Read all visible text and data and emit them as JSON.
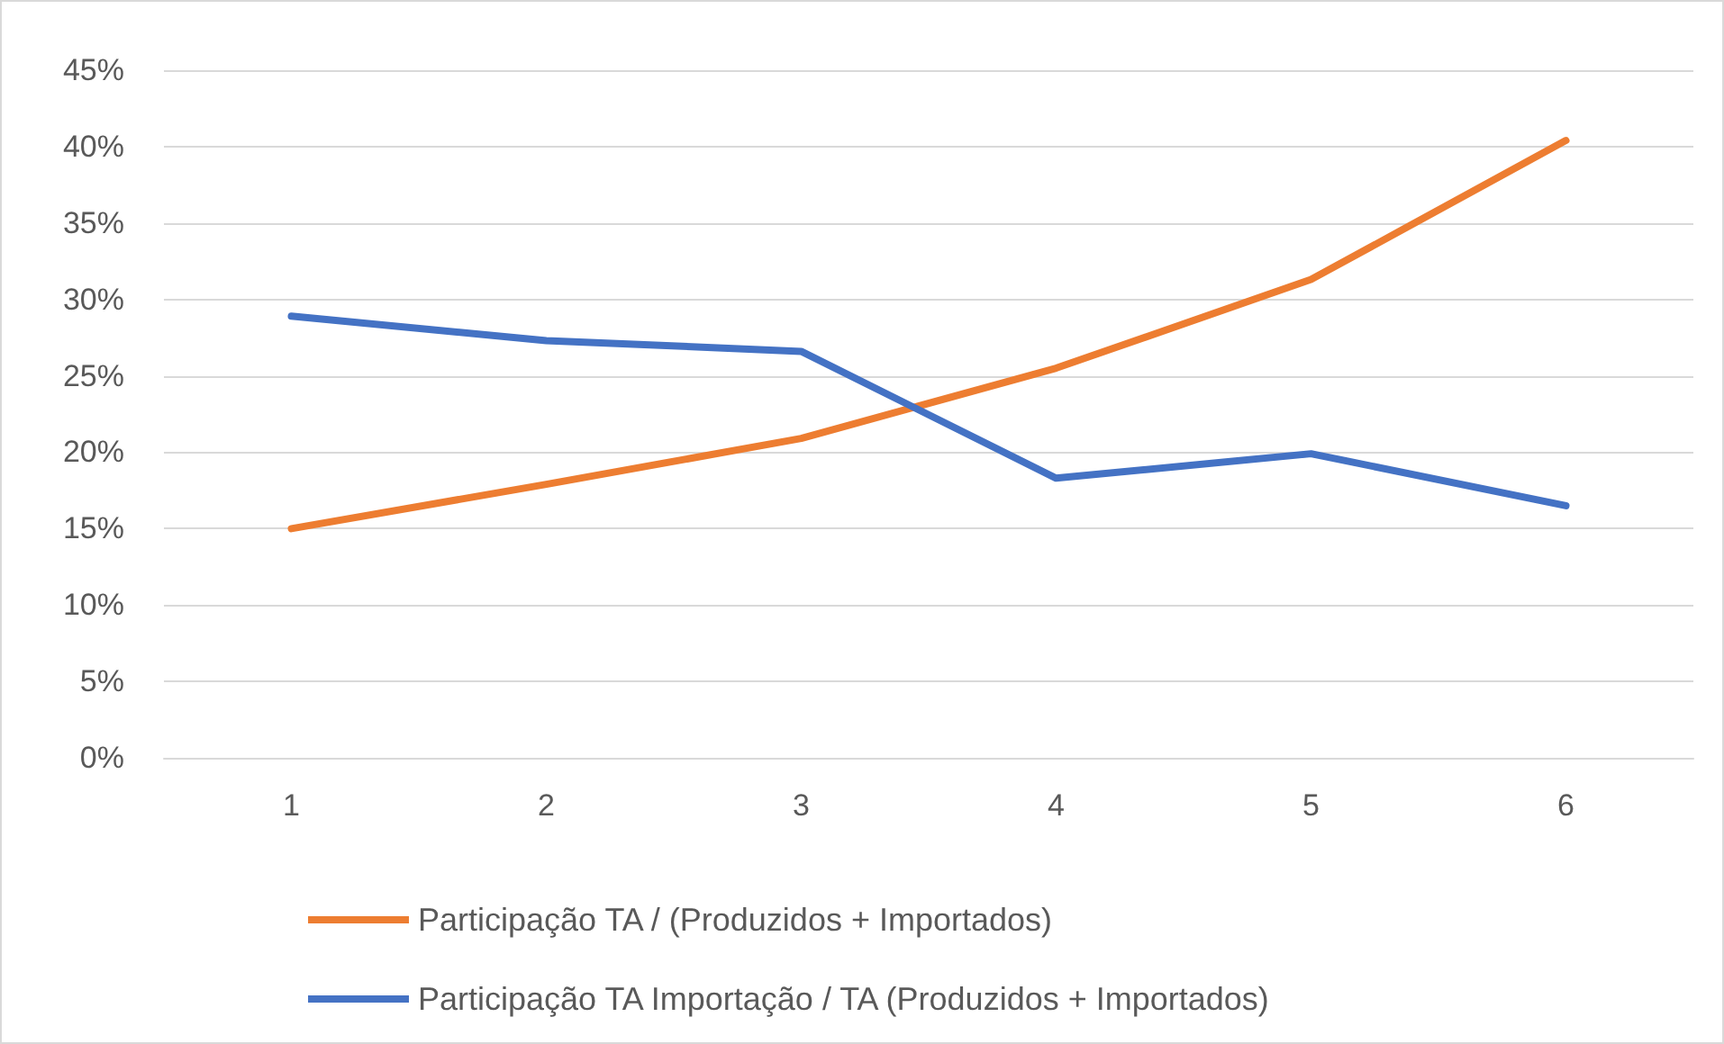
{
  "chart_data": {
    "type": "line",
    "categories": [
      "1",
      "2",
      "3",
      "4",
      "5",
      "6"
    ],
    "series": [
      {
        "name": "Participação TA / (Produzidos + Importados)",
        "color": "#ed7d31",
        "values": [
          15.0,
          17.9,
          20.9,
          25.5,
          31.3,
          40.4
        ]
      },
      {
        "name": "Participação TA Importação / TA (Produzidos + Importados)",
        "color": "#4472c4",
        "values": [
          28.9,
          27.3,
          26.6,
          18.3,
          19.9,
          16.5
        ]
      }
    ],
    "ylim": [
      0,
      45
    ],
    "yticks": [
      {
        "value": 0,
        "label": "0%"
      },
      {
        "value": 5,
        "label": "5%"
      },
      {
        "value": 10,
        "label": "10%"
      },
      {
        "value": 15,
        "label": "15%"
      },
      {
        "value": 20,
        "label": "20%"
      },
      {
        "value": 25,
        "label": "25%"
      },
      {
        "value": 30,
        "label": "30%"
      },
      {
        "value": 35,
        "label": "35%"
      },
      {
        "value": 40,
        "label": "40%"
      },
      {
        "value": 45,
        "label": "45%"
      }
    ],
    "grid": "y",
    "legend": "bottom",
    "marker": "none",
    "line_style": "solid"
  }
}
